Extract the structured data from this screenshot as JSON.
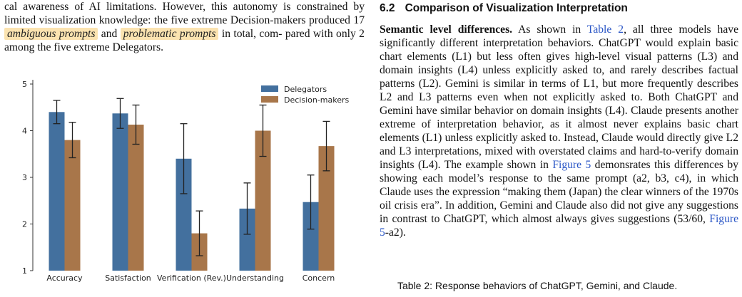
{
  "left_text": {
    "line1": "cal awareness of AI limitations. However, this autonomy is constrained",
    "line2": "by limited visualization knowledge: the five extreme Decision-makers",
    "line3_pre": "produced 17",
    "tag1": "ambiguous prompts",
    "line3_mid": "and",
    "tag2": "problematic prompts",
    "line3_post": "in total, com-",
    "line4": "pared with only 2 among the five extreme Delegators."
  },
  "section": {
    "number": "6.2",
    "title": "Comparison of Visualization Interpretation"
  },
  "right_text": {
    "lead": "Semantic level differences.",
    "s1": " As shown in ",
    "ref_table": "Table 2",
    "s2": ", all three models have significantly different interpretation behaviors. ChatGPT would explain basic chart elements (L1) but less often gives high-level visual patterns (L3) and domain insights (L4) unless explicitly asked to, and rarely describes factual patterns (L2). Gemini is similar in terms of L1, but more frequently describes L2 and L3 patterns even when not explicitly asked to. Both ChatGPT and Gemini have similar behavior on domain insights (L4). Claude presents another extreme of interpretation behavior, as it almost never explains basic chart elements (L1) unless explicitly asked to. Instead, Claude would directly give L2 and L3 interpretations, mixed with overstated claims and hard-to-verify domain insights (L4). The example shown in ",
    "ref_fig": "Figure 5",
    "s3": " demonsrates this differences by showing each model’s response to the same prompt (a2, b3, c4), in which Claude uses the expression “making them (Japan) the clear winners of the 1970s oil crisis era”. In addition, Gemini and Claude also did not give any suggestions in contrast to ChatGPT, which almost always gives suggestions (53/60, ",
    "ref_fig2": "Figure 5",
    "s4": "-a2)."
  },
  "caption": "Table 2: Response behaviors of ChatGPT, Gemini, and Claude.",
  "chart_data": {
    "type": "bar",
    "categories": [
      "Accuracy",
      "Satisfaction",
      "Verification (Rev.)",
      "Understanding",
      "Concern"
    ],
    "series": [
      {
        "name": "Delegators",
        "color": "#43709e",
        "values": [
          4.4,
          4.37,
          3.4,
          2.33,
          2.47
        ],
        "err": [
          0.25,
          0.32,
          0.75,
          0.55,
          0.58
        ]
      },
      {
        "name": "Decision-makers",
        "color": "#a8764a",
        "values": [
          3.8,
          4.13,
          1.8,
          4.0,
          3.67
        ],
        "err": [
          0.38,
          0.42,
          0.48,
          0.55,
          0.53
        ]
      }
    ],
    "ylim": [
      1,
      5
    ],
    "yticks": [
      1,
      2,
      3,
      4,
      5
    ],
    "legend": "top-right",
    "grid": false
  }
}
